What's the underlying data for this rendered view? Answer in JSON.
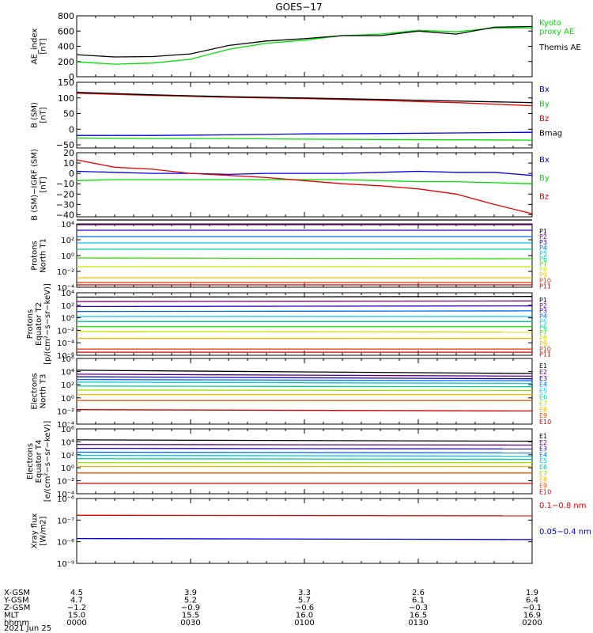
{
  "title": "GOES−17",
  "colors": {
    "black": "#000000",
    "blue": "#0000dd",
    "green": "#00dd00",
    "red": "#e00000",
    "ptab": [
      "#000000",
      "#7a0078",
      "#2a00c8",
      "#0068ff",
      "#00c8e6",
      "#00d090",
      "#30e000",
      "#c8e000",
      "#f0b800",
      "#e03000",
      "#c80000"
    ],
    "etab": [
      "#000000",
      "#5a007a",
      "#2000b0",
      "#0068ff",
      "#00c8e6",
      "#00d090",
      "#a0e000",
      "#f0b800",
      "#e05000",
      "#d00000"
    ]
  },
  "xaxis": {
    "rows": [
      {
        "label": "X-GSM",
        "values": [
          "4.5",
          "3.9",
          "3.3",
          "2.6",
          "1.9"
        ]
      },
      {
        "label": "Y-GSM",
        "values": [
          "4.7",
          "5.2",
          "5.7",
          "6.1",
          "6.4"
        ]
      },
      {
        "label": "Z-GSM",
        "values": [
          "−1.2",
          "−0.9",
          "−0.6",
          "−0.3",
          "−0.1"
        ]
      },
      {
        "label": "MLT",
        "values": [
          "15.0",
          "15.5",
          "16.0",
          "16.5",
          "16.9"
        ]
      },
      {
        "label": "hhmm",
        "values": [
          "0000",
          "0030",
          "0100",
          "0130",
          "0200"
        ]
      }
    ],
    "date": "2021 Jun 25"
  },
  "chart_data": [
    {
      "type": "line",
      "ylabel": [
        "AE_index",
        "[nT]"
      ],
      "ylim": [
        0,
        800
      ],
      "yticks": [
        "0",
        "200",
        "400",
        "600",
        "800"
      ],
      "x_label": "hhmm",
      "x": [
        "0000",
        "0010",
        "0020",
        "0030",
        "0040",
        "0050",
        "0100",
        "0110",
        "0120",
        "0130",
        "0140",
        "0150",
        "0200"
      ],
      "series": [
        {
          "name": "Kyoto proxy AE",
          "legend": [
            "Kyoto",
            "proxy AE"
          ],
          "color": "green",
          "values": [
            195,
            165,
            180,
            230,
            360,
            440,
            480,
            540,
            560,
            610,
            590,
            640,
            640
          ]
        },
        {
          "name": "Themis AE",
          "legend": [
            "Themis AE"
          ],
          "color": "black",
          "values": [
            290,
            260,
            265,
            300,
            410,
            470,
            500,
            540,
            540,
            600,
            560,
            650,
            660
          ]
        }
      ]
    },
    {
      "type": "line",
      "ylabel": [
        "B (SM)",
        "[nT]"
      ],
      "ylim": [
        -60,
        150
      ],
      "yticks": [
        "−50",
        "0",
        "50",
        "100",
        "150"
      ],
      "x_label": "hhmm",
      "x": [
        "0000",
        "0020",
        "0040",
        "0100",
        "0120",
        "0140",
        "0200"
      ],
      "series": [
        {
          "name": "Bx",
          "color": "blue",
          "values": [
            -20,
            -20,
            -18,
            -15,
            -14,
            -12,
            -10
          ]
        },
        {
          "name": "By",
          "color": "green",
          "values": [
            -28,
            -30,
            -30,
            -32,
            -33,
            -34,
            -35
          ]
        },
        {
          "name": "Bz",
          "color": "red",
          "values": [
            115,
            108,
            102,
            98,
            92,
            85,
            75
          ]
        },
        {
          "name": "Bmag",
          "color": "black",
          "values": [
            118,
            110,
            104,
            100,
            95,
            90,
            85
          ]
        }
      ]
    },
    {
      "type": "line",
      "ylabel": [
        "B (SM)−IGRF (SM)",
        "[nT]"
      ],
      "ylim": [
        -42,
        20
      ],
      "yticks": [
        "−40",
        "−30",
        "−20",
        "−10",
        "0",
        "10",
        "20"
      ],
      "x_label": "hhmm",
      "x": [
        "0000",
        "0010",
        "0020",
        "0030",
        "0040",
        "0050",
        "0100",
        "0110",
        "0120",
        "0130",
        "0140",
        "0150",
        "0200"
      ],
      "series": [
        {
          "name": "Bx",
          "color": "blue",
          "values": [
            2,
            1,
            0,
            0,
            -1,
            0,
            0,
            0,
            1,
            2,
            1,
            1,
            -2
          ]
        },
        {
          "name": "By",
          "color": "green",
          "values": [
            -7,
            -6,
            -6,
            -6,
            -6,
            -6,
            -6,
            -6,
            -7,
            -8,
            -8,
            -9,
            -10
          ]
        },
        {
          "name": "Bz",
          "color": "red",
          "values": [
            13,
            6,
            4,
            0,
            -2,
            -4,
            -7,
            -10,
            -12,
            -15,
            -20,
            -30,
            -39
          ]
        }
      ]
    },
    {
      "type": "line",
      "ylabel": [
        "Protons",
        "North T1"
      ],
      "yscale": "log",
      "ylim_exp": [
        -4,
        4
      ],
      "yticks_exp": [
        -4,
        -2,
        0,
        2,
        4
      ],
      "x_label": "hhmm",
      "x": [
        "0000",
        "0200"
      ],
      "series": [
        {
          "name": "P1",
          "color_idx": 0,
          "values": [
            4.5,
            4.5
          ]
        },
        {
          "name": "P2",
          "color_idx": 1,
          "values": [
            3.9,
            3.9
          ]
        },
        {
          "name": "P3",
          "color_idx": 2,
          "values": [
            3.2,
            3.2
          ]
        },
        {
          "name": "P4",
          "color_idx": 3,
          "values": [
            2.4,
            2.4
          ]
        },
        {
          "name": "P5",
          "color_idx": 4,
          "values": [
            1.6,
            1.6
          ]
        },
        {
          "name": "P6",
          "color_idx": 5,
          "values": [
            0.8,
            0.8
          ]
        },
        {
          "name": "P7",
          "color_idx": 6,
          "values": [
            -0.3,
            -0.4
          ]
        },
        {
          "name": "P8",
          "color_idx": 7,
          "values": [
            -1.4,
            -1.4
          ]
        },
        {
          "name": "P9",
          "color_idx": 8,
          "values": [
            -2.8,
            -2.8
          ]
        },
        {
          "name": "P10",
          "color_idx": 9,
          "values": [
            -3.4,
            -3.4
          ]
        },
        {
          "name": "P11",
          "color_idx": 10,
          "values": [
            -3.7,
            -3.7
          ]
        }
      ]
    },
    {
      "type": "line",
      "ylabel": [
        "Protons",
        "Equator T2",
        "[p/(cm²−s−sr−keV)]"
      ],
      "yscale": "log",
      "ylim_exp": [
        -6,
        4
      ],
      "yticks_exp": [
        -6,
        -4,
        -2,
        0,
        2,
        4
      ],
      "x_label": "hhmm",
      "x": [
        "0000",
        "0200"
      ],
      "series": [
        {
          "name": "P1",
          "color_idx": 0,
          "values": [
            3.3,
            3.4
          ]
        },
        {
          "name": "P2",
          "color_idx": 1,
          "values": [
            2.6,
            2.7
          ]
        },
        {
          "name": "P3",
          "color_idx": 2,
          "values": [
            1.8,
            1.9
          ]
        },
        {
          "name": "P4",
          "color_idx": 3,
          "values": [
            1.0,
            1.1
          ]
        },
        {
          "name": "P5",
          "color_idx": 4,
          "values": [
            0.2,
            0.2
          ]
        },
        {
          "name": "P6",
          "color_idx": 5,
          "values": [
            -0.6,
            -0.6
          ]
        },
        {
          "name": "P7",
          "color_idx": 6,
          "values": [
            -1.4,
            -1.4
          ]
        },
        {
          "name": "P8",
          "color_idx": 7,
          "values": [
            -2.2,
            -2.3
          ]
        },
        {
          "name": "P9",
          "color_idx": 8,
          "values": [
            -3.3,
            -3.3
          ]
        },
        {
          "name": "P10",
          "color_idx": 9,
          "values": [
            -5.0,
            -5.0
          ]
        },
        {
          "name": "P11",
          "color_idx": 10,
          "values": [
            -5.5,
            -5.5
          ]
        }
      ]
    },
    {
      "type": "line",
      "ylabel": [
        "Electrons",
        "North T3"
      ],
      "yscale": "log",
      "ylim_exp": [
        -4,
        6
      ],
      "yticks_exp": [
        -4,
        -2,
        0,
        2,
        4,
        6
      ],
      "x_label": "hhmm",
      "x": [
        "0000",
        "0200"
      ],
      "series": [
        {
          "name": "E1",
          "color_idx": 0,
          "values": [
            4.2,
            3.7
          ]
        },
        {
          "name": "E2",
          "color_idx": 1,
          "values": [
            3.6,
            3.3
          ]
        },
        {
          "name": "E3",
          "color_idx": 2,
          "values": [
            3.2,
            2.9
          ]
        },
        {
          "name": "E4",
          "color_idx": 3,
          "values": [
            2.8,
            2.6
          ]
        },
        {
          "name": "E5",
          "color_idx": 4,
          "values": [
            2.4,
            2.2
          ]
        },
        {
          "name": "E6",
          "color_idx": 5,
          "values": [
            1.8,
            1.7
          ]
        },
        {
          "name": "E7",
          "color_idx": 6,
          "values": [
            1.2,
            1.1
          ]
        },
        {
          "name": "E8",
          "color_idx": 7,
          "values": [
            0.5,
            0.5
          ]
        },
        {
          "name": "E9",
          "color_idx": 8,
          "values": [
            -0.4,
            -0.4
          ]
        },
        {
          "name": "E10",
          "color_idx": 9,
          "values": [
            -1.8,
            -2.0
          ]
        }
      ]
    },
    {
      "type": "line",
      "ylabel": [
        "Electrons",
        "Equator T4",
        "[e/(cm²−s−sr−keV)]"
      ],
      "yscale": "log",
      "ylim_exp": [
        -4,
        6
      ],
      "yticks_exp": [
        -4,
        -2,
        0,
        2,
        4,
        6
      ],
      "x_label": "hhmm",
      "x": [
        "0000",
        "0200"
      ],
      "series": [
        {
          "name": "E1",
          "color_idx": 0,
          "values": [
            4.3,
            4.1
          ]
        },
        {
          "name": "E2",
          "color_idx": 1,
          "values": [
            3.6,
            3.5
          ]
        },
        {
          "name": "E3",
          "color_idx": 2,
          "values": [
            3.0,
            2.9
          ]
        },
        {
          "name": "E4",
          "color_idx": 3,
          "values": [
            2.4,
            2.3
          ]
        },
        {
          "name": "E5",
          "color_idx": 4,
          "values": [
            1.9,
            1.8
          ]
        },
        {
          "name": "E6",
          "color_idx": 5,
          "values": [
            1.4,
            1.3
          ]
        },
        {
          "name": "E7",
          "color_idx": 6,
          "values": [
            0.8,
            0.8
          ]
        },
        {
          "name": "E8",
          "color_idx": 7,
          "values": [
            0.2,
            0.2
          ]
        },
        {
          "name": "E9",
          "color_idx": 8,
          "values": [
            -0.8,
            -0.8
          ]
        },
        {
          "name": "E10",
          "color_idx": 9,
          "values": [
            -2.4,
            -2.4
          ]
        }
      ]
    },
    {
      "type": "line",
      "ylabel": [
        "Xray flux",
        "[W/m2]"
      ],
      "yscale": "log",
      "ylim_exp": [
        -9,
        -6
      ],
      "yticks_exp": [
        -9,
        -8,
        -7,
        -6
      ],
      "x_label": "hhmm",
      "x": [
        "0000",
        "0200"
      ],
      "series": [
        {
          "name": "0.1−0.8 nm",
          "color": "red",
          "values": [
            -6.78,
            -6.8
          ]
        },
        {
          "name": "0.05−0.4 nm",
          "color": "blue",
          "values": [
            -7.85,
            -7.9
          ]
        }
      ]
    }
  ]
}
